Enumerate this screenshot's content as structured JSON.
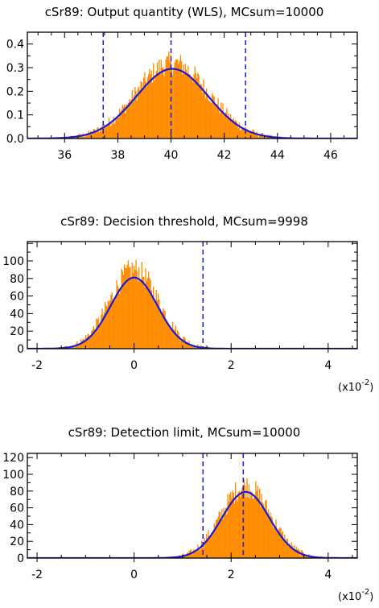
{
  "chart_data": [
    {
      "type": "histogram",
      "title": "cSr89:  Output quantity (WLS),  MCsum=10000",
      "xlim": [
        34.6,
        47.0
      ],
      "ylim": [
        0,
        0.45
      ],
      "x_ticks": [
        36,
        38,
        40,
        42,
        44,
        46
      ],
      "x_tick_labels": [
        "36",
        "38",
        "40",
        "42",
        "44",
        "46"
      ],
      "y_ticks": [
        0.0,
        0.1,
        0.2,
        0.3,
        0.4
      ],
      "y_tick_labels": [
        "0.0",
        "0.1",
        "0.2",
        "0.3",
        "0.4"
      ],
      "x_scale_label": "",
      "histogram": {
        "mean": 40.05,
        "sd": 1.35,
        "peak": 0.32,
        "noise": 0.05,
        "color": "#ff8c00"
      },
      "fit_curve": {
        "mean": 40.05,
        "sd": 1.35,
        "peak": 0.295,
        "color": "#1a1adc"
      },
      "vertical_lines": [
        37.45,
        40.0,
        42.8
      ],
      "vline_color": "#1a1adc"
    },
    {
      "type": "histogram",
      "title": "cSr89:  Decision threshold,  MCsum=9998",
      "xlim": [
        -2.2,
        4.6
      ],
      "ylim": [
        0,
        122
      ],
      "x_ticks": [
        -2,
        0,
        2,
        4
      ],
      "x_tick_labels": [
        "-2",
        "0",
        "2",
        "4"
      ],
      "y_ticks": [
        0,
        20,
        40,
        60,
        80,
        100
      ],
      "y_tick_labels": [
        "0",
        "20",
        "40",
        "60",
        "80",
        "100"
      ],
      "x_scale_label": "(x10",
      "x_scale_exp": "-2",
      "x_scale_close": ")",
      "histogram": {
        "mean": 0.0,
        "sd": 0.5,
        "peak": 90,
        "noise": 14,
        "color": "#ff8c00"
      },
      "fit_curve": {
        "mean": 0.0,
        "sd": 0.48,
        "peak": 81,
        "color": "#1a1adc"
      },
      "vertical_lines": [
        1.42
      ],
      "vline_color": "#1a1adc"
    },
    {
      "type": "histogram",
      "title": "cSr89:  Detection limit,  MCsum=10000",
      "xlim": [
        -2.2,
        4.6
      ],
      "ylim": [
        0,
        125
      ],
      "x_ticks": [
        -2,
        0,
        2,
        4
      ],
      "x_tick_labels": [
        "-2",
        "0",
        "2",
        "4"
      ],
      "y_ticks": [
        0,
        20,
        40,
        60,
        80,
        100,
        120
      ],
      "y_tick_labels": [
        "0",
        "20",
        "40",
        "60",
        "80",
        "100",
        "120"
      ],
      "x_scale_label": "(x10",
      "x_scale_exp": "-2",
      "x_scale_close": ")",
      "histogram": {
        "mean": 2.3,
        "sd": 0.5,
        "peak": 86,
        "noise": 14,
        "color": "#ff8c00"
      },
      "fit_curve": {
        "mean": 2.3,
        "sd": 0.49,
        "peak": 79,
        "color": "#1a1adc"
      },
      "vertical_lines": [
        1.42,
        2.25
      ],
      "vline_color": "#1a1adc"
    }
  ]
}
